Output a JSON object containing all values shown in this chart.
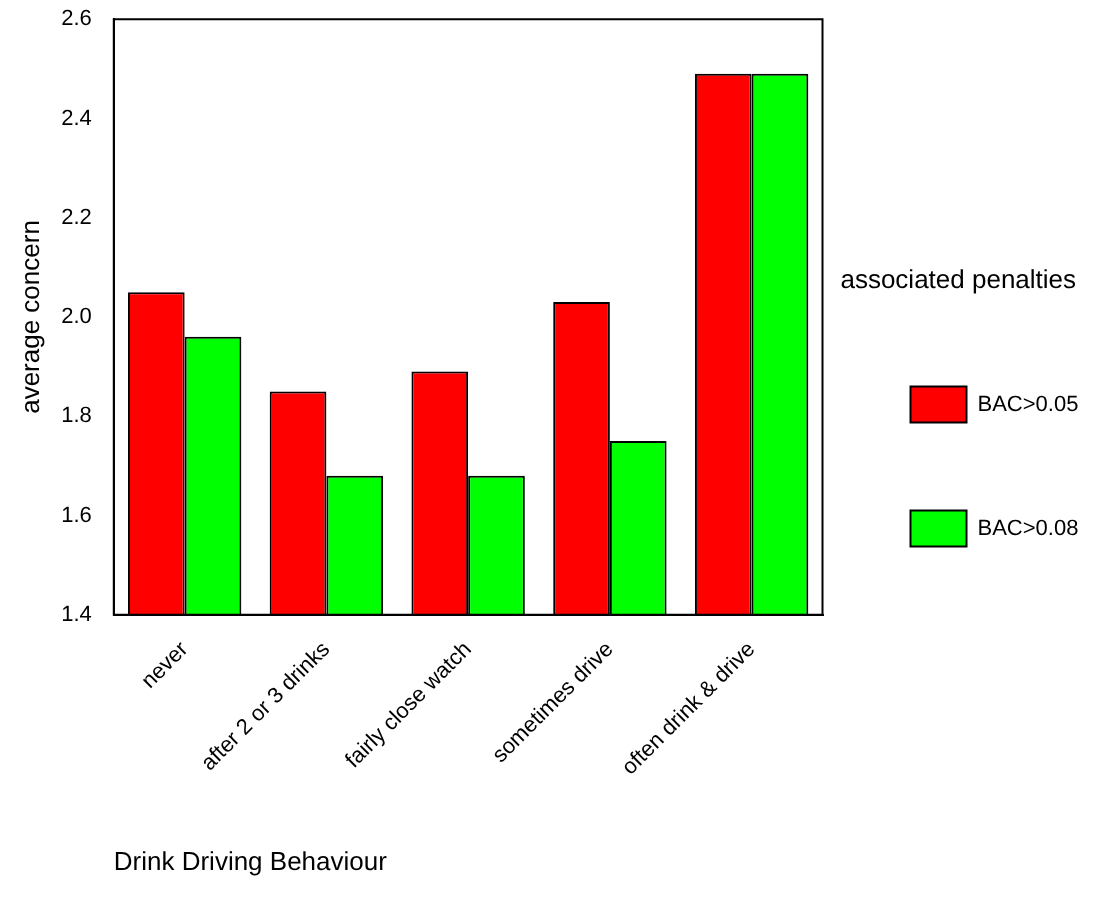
{
  "chart_data": {
    "type": "bar",
    "xlabel": "Drink Driving Behaviour",
    "ylabel": "average concern",
    "legend_title": "associated penalties",
    "categories": [
      "never",
      "after 2 or 3 drinks",
      "fairly close watch",
      "sometimes drive",
      "often drink & drive"
    ],
    "series": [
      {
        "name": "BAC>0.05",
        "color": "#ff0000",
        "values": [
          2.05,
          1.85,
          1.89,
          2.03,
          2.49
        ]
      },
      {
        "name": "BAC>0.08",
        "color": "#00ff00",
        "values": [
          1.96,
          1.68,
          1.68,
          1.75,
          2.49
        ]
      }
    ],
    "ylim": [
      1.4,
      2.6
    ],
    "yticks": [
      {
        "value": 1.4,
        "label": "1.4"
      },
      {
        "value": 1.6,
        "label": "1.6"
      },
      {
        "value": 1.8,
        "label": "1.8"
      },
      {
        "value": 2.0,
        "label": "2.0"
      },
      {
        "value": 2.2,
        "label": "2.2"
      },
      {
        "value": 2.4,
        "label": "2.4"
      },
      {
        "value": 2.6,
        "label": "2.6"
      }
    ],
    "grid": false,
    "legend": "right"
  }
}
